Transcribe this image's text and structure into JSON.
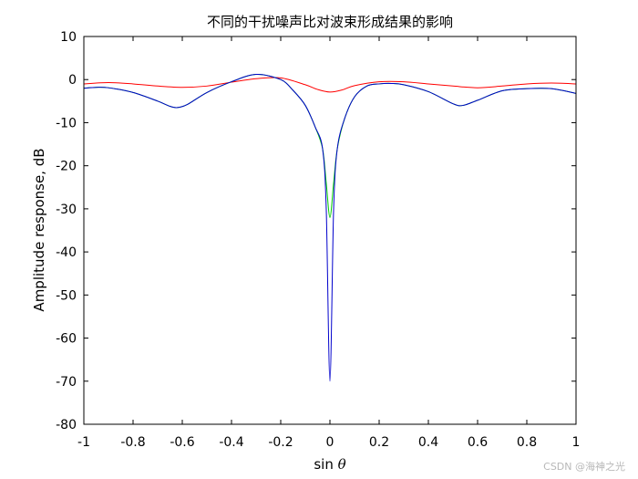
{
  "chart_data": {
    "type": "line",
    "title": "不同的干扰噪声比对波束形成结果的影响",
    "xlabel_prefix": "sin ",
    "xlabel_symbol": "θ",
    "ylabel": "Amplitude response, dB",
    "xlim": [
      -1,
      1
    ],
    "ylim": [
      -80,
      10
    ],
    "xticks": [
      -1,
      -0.8,
      -0.6,
      -0.4,
      -0.2,
      0,
      0.2,
      0.4,
      0.6,
      0.8,
      1
    ],
    "xtick_labels": [
      "-1",
      "-0.8",
      "-0.6",
      "-0.4",
      "-0.2",
      "0",
      "0.2",
      "0.4",
      "0.6",
      "0.8",
      "1"
    ],
    "yticks": [
      10,
      0,
      -10,
      -20,
      -30,
      -40,
      -50,
      -60,
      -70,
      -80
    ],
    "ytick_labels": [
      "10",
      "0",
      "-10",
      "-20",
      "-30",
      "-40",
      "-50",
      "-60",
      "-70",
      "-80"
    ],
    "grid": false,
    "legend": false,
    "series": [
      {
        "color": "#ff0000",
        "x": [
          -1,
          -0.9,
          -0.8,
          -0.7,
          -0.6,
          -0.5,
          -0.4,
          -0.3,
          -0.2,
          -0.1,
          -0.05,
          0,
          0.05,
          0.1,
          0.2,
          0.3,
          0.4,
          0.5,
          0.6,
          0.7,
          0.8,
          0.9,
          1
        ],
        "y": [
          -1.0,
          -0.7,
          -1.0,
          -1.5,
          -1.8,
          -1.5,
          -0.6,
          0.2,
          0.4,
          -1.2,
          -2.3,
          -2.9,
          -2.4,
          -1.4,
          -0.5,
          -0.5,
          -1.0,
          -1.5,
          -1.9,
          -1.5,
          -1.0,
          -0.8,
          -1.0
        ]
      },
      {
        "color": "#00cc00",
        "x": [
          -1,
          -0.95,
          -0.9,
          -0.8,
          -0.7,
          -0.65,
          -0.62,
          -0.58,
          -0.5,
          -0.4,
          -0.3,
          -0.2,
          -0.15,
          -0.1,
          -0.06,
          -0.03,
          -0.015,
          0,
          0.015,
          0.03,
          0.06,
          0.1,
          0.15,
          0.2,
          0.25,
          0.3,
          0.4,
          0.5,
          0.54,
          0.6,
          0.7,
          0.8,
          0.9,
          1
        ],
        "y": [
          -2.0,
          -1.8,
          -1.9,
          -3.0,
          -5.0,
          -6.2,
          -6.5,
          -5.8,
          -3.0,
          -0.5,
          1.2,
          0.0,
          -2.5,
          -6.0,
          -11.0,
          -16.0,
          -24.0,
          -32.0,
          -24.0,
          -16.0,
          -9.0,
          -4.0,
          -1.5,
          -1.0,
          -0.9,
          -1.2,
          -2.8,
          -5.6,
          -6.0,
          -4.8,
          -2.6,
          -2.1,
          -2.1,
          -3.2
        ]
      },
      {
        "color": "#0000cc",
        "x": [
          -1,
          -0.95,
          -0.9,
          -0.8,
          -0.7,
          -0.65,
          -0.62,
          -0.58,
          -0.5,
          -0.4,
          -0.3,
          -0.2,
          -0.15,
          -0.1,
          -0.06,
          -0.03,
          -0.015,
          0,
          0.015,
          0.03,
          0.06,
          0.1,
          0.15,
          0.2,
          0.25,
          0.3,
          0.4,
          0.5,
          0.54,
          0.6,
          0.7,
          0.8,
          0.9,
          1
        ],
        "y": [
          -2.0,
          -1.8,
          -1.9,
          -3.0,
          -5.0,
          -6.2,
          -6.5,
          -5.8,
          -3.0,
          -0.5,
          1.2,
          0.0,
          -2.5,
          -6.0,
          -11.0,
          -16.0,
          -30.0,
          -70.0,
          -30.0,
          -16.0,
          -9.0,
          -4.0,
          -1.5,
          -1.0,
          -0.9,
          -1.2,
          -2.8,
          -5.6,
          -6.0,
          -4.8,
          -2.6,
          -2.1,
          -2.1,
          -3.2
        ]
      }
    ]
  },
  "watermark": "CSDN @海神之光"
}
